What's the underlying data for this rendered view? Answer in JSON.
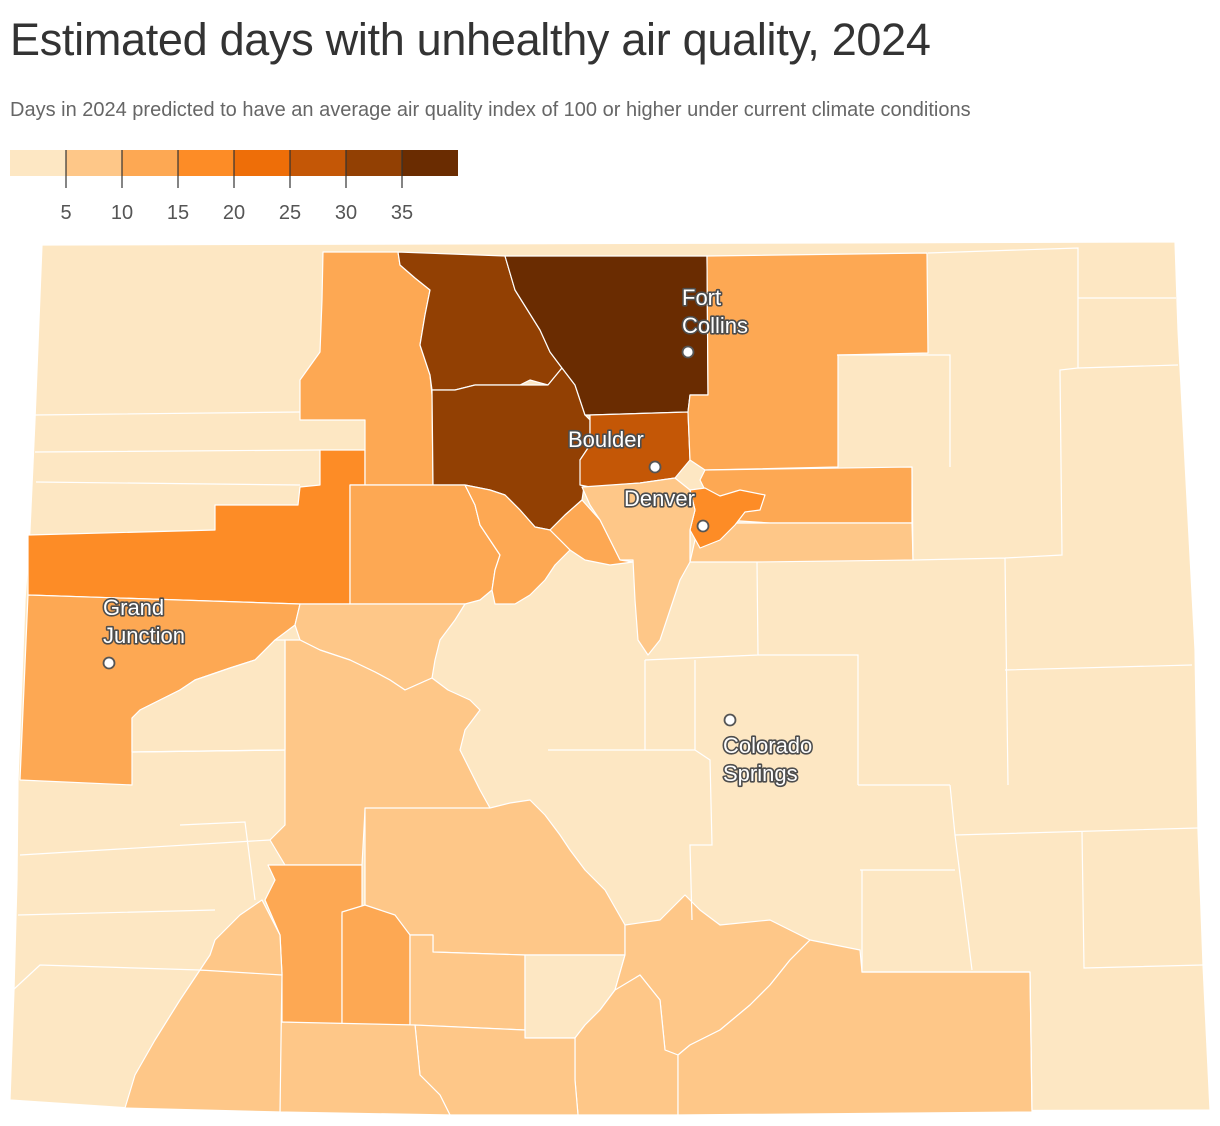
{
  "header": {
    "title": "Estimated days with unhealthy air quality, 2024",
    "subtitle": "Days in 2024 predicted to have an average air quality index of 100 or higher under current climate conditions"
  },
  "legend": {
    "bins": [
      {
        "color": "#fde7c3"
      },
      {
        "color": "#fec788"
      },
      {
        "color": "#fda853"
      },
      {
        "color": "#fd8c26"
      },
      {
        "color": "#ee6e08"
      },
      {
        "color": "#c45706"
      },
      {
        "color": "#924003"
      },
      {
        "color": "#6a2c01"
      }
    ],
    "ticks": [
      "5",
      "10",
      "15",
      "20",
      "25",
      "30",
      "35"
    ]
  },
  "cities": [
    {
      "name": "Fort Collins",
      "lines": [
        "Fort",
        "Collins"
      ]
    },
    {
      "name": "Boulder",
      "lines": [
        "Boulder"
      ]
    },
    {
      "name": "Denver",
      "lines": [
        "Denver"
      ]
    },
    {
      "name": "Grand Junction",
      "lines": [
        "Grand",
        "Junction"
      ]
    },
    {
      "name": "Colorado Springs",
      "lines": [
        "Colorado",
        "Springs"
      ]
    }
  ]
}
